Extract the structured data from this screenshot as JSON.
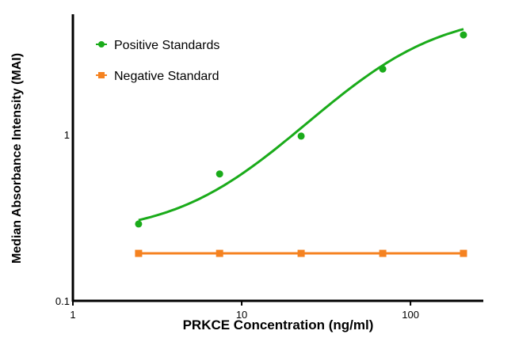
{
  "chart_data": {
    "type": "line",
    "xlabel": "PRKCE Concentration (ng/ml)",
    "ylabel": "Median Absorbance Intensity (MAI)",
    "xscale": "log",
    "yscale": "log",
    "xlim": [
      1,
      270
    ],
    "ylim": [
      0.1,
      5.3
    ],
    "xticks": [
      {
        "v": 1,
        "label": "1"
      },
      {
        "v": 10,
        "label": "10"
      },
      {
        "v": 100,
        "label": "100"
      }
    ],
    "yticks": [
      {
        "v": 0.1,
        "label": "0.1"
      },
      {
        "v": 1,
        "label": "1"
      }
    ],
    "grid": false,
    "legend_position": "top-left",
    "series": [
      {
        "name": "Positive Standards",
        "color": "#1aab1a",
        "marker": "circle",
        "fit": "sigmoidal curve",
        "x": [
          2.45,
          7.4,
          22.5,
          68.5,
          206
        ],
        "y": [
          0.29,
          0.58,
          0.98,
          2.48,
          3.98
        ]
      },
      {
        "name": "Negative Standard",
        "color": "#f58220",
        "marker": "square",
        "fit": "straight line",
        "x": [
          2.45,
          7.4,
          22.5,
          68.5,
          206
        ],
        "y": [
          0.193,
          0.193,
          0.193,
          0.193,
          0.193
        ]
      }
    ]
  }
}
